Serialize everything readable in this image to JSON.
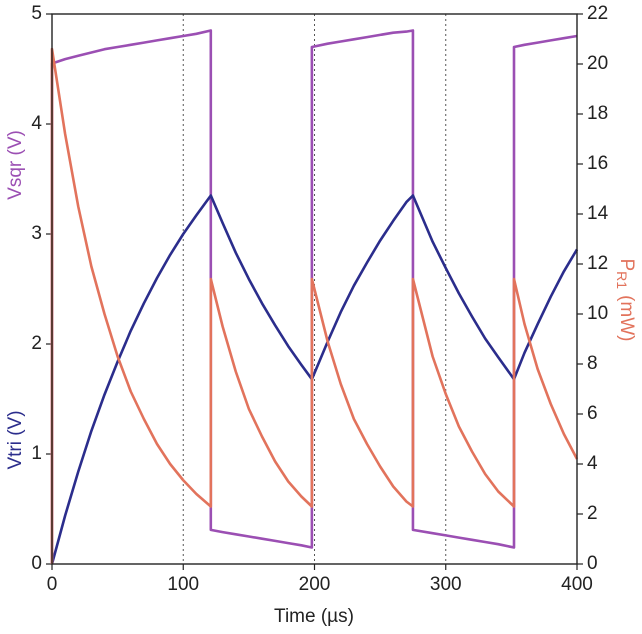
{
  "chart_data": {
    "type": "line",
    "xlabel": "Time (µs)",
    "ylabels": [
      {
        "text": "Vsqr (V)",
        "color": "#9b4fb3"
      },
      {
        "text": "Vtri (V)",
        "color": "#2b2d8c"
      }
    ],
    "y2label": {
      "main": "P",
      "sub": "R1",
      "unit": "(mW)",
      "color": "#e2735c"
    },
    "x": [
      0,
      0,
      10,
      20,
      30,
      40,
      50,
      60,
      70,
      80,
      90,
      100,
      110,
      121,
      121,
      130,
      140,
      150,
      160,
      170,
      180,
      190,
      198,
      198,
      210,
      220,
      230,
      240,
      250,
      260,
      270,
      275,
      275,
      290,
      300,
      310,
      320,
      330,
      340,
      352,
      352,
      360,
      370,
      380,
      390,
      400
    ],
    "series": [
      {
        "color": "#9b4fb3",
        "values": [
          0,
          4.55,
          4.59,
          4.62,
          4.65,
          4.68,
          4.7,
          4.72,
          4.74,
          4.76,
          4.78,
          4.8,
          4.82,
          4.85,
          0.31,
          0.29,
          0.27,
          0.25,
          0.23,
          0.21,
          0.19,
          0.17,
          0.15,
          4.7,
          4.73,
          4.75,
          4.77,
          4.79,
          4.81,
          4.83,
          4.84,
          4.85,
          0.31,
          0.28,
          0.26,
          0.24,
          0.22,
          0.2,
          0.18,
          0.15,
          4.7,
          4.72,
          4.74,
          4.76,
          4.78,
          4.8
        ]
      },
      {
        "color": "#2b2d8c",
        "values": [
          0,
          0,
          0.44,
          0.84,
          1.21,
          1.54,
          1.84,
          2.12,
          2.37,
          2.6,
          2.81,
          3.0,
          3.17,
          3.35,
          3.35,
          3.1,
          2.83,
          2.59,
          2.37,
          2.17,
          1.98,
          1.81,
          1.68,
          1.68,
          2.02,
          2.29,
          2.53,
          2.74,
          2.94,
          3.12,
          3.29,
          3.35,
          3.35,
          2.93,
          2.69,
          2.46,
          2.25,
          2.05,
          1.88,
          1.68,
          1.68,
          1.92,
          2.18,
          2.43,
          2.66,
          2.86
        ]
      },
      {
        "color": "#e2735c",
        "axis": "y2",
        "values": [
          0,
          20.6,
          17.2,
          14.3,
          11.9,
          10.0,
          8.3,
          6.9,
          5.8,
          4.8,
          4.0,
          3.35,
          2.8,
          2.3,
          11.4,
          9.5,
          7.7,
          6.2,
          5.1,
          4.1,
          3.3,
          2.7,
          2.3,
          11.4,
          8.9,
          7.2,
          5.8,
          4.8,
          3.9,
          3.1,
          2.5,
          2.3,
          11.4,
          8.3,
          6.8,
          5.5,
          4.5,
          3.6,
          2.9,
          2.3,
          11.4,
          9.6,
          7.8,
          6.4,
          5.2,
          4.2
        ]
      }
    ],
    "xlim": [
      0,
      400
    ],
    "xticks": [
      0,
      100,
      200,
      300,
      400
    ],
    "ylim": [
      0,
      5
    ],
    "yticks": [
      0,
      1,
      2,
      3,
      4,
      5
    ],
    "y2lim": [
      0,
      22
    ],
    "y2ticks": [
      0,
      2,
      4,
      6,
      8,
      10,
      12,
      14,
      16,
      18,
      20,
      22
    ],
    "xgrid": {
      "style": "dotted",
      "color": "#555555"
    }
  }
}
